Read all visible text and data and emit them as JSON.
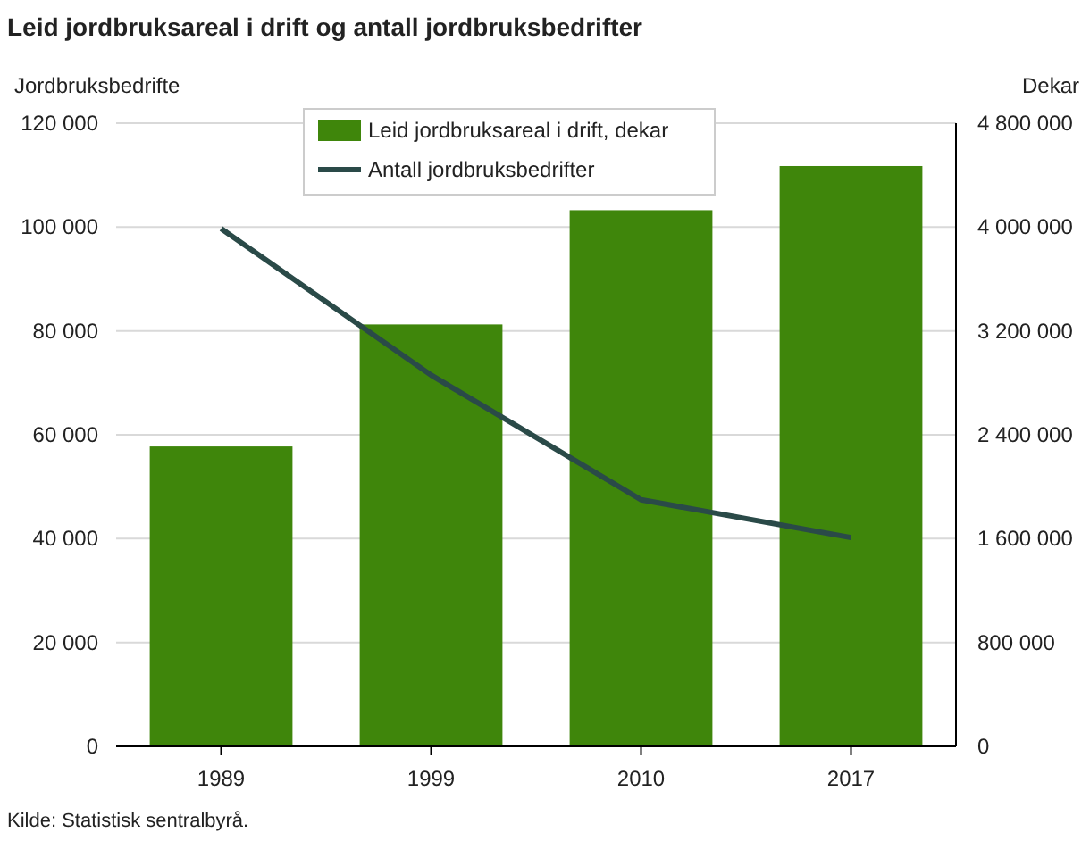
{
  "chart_data": {
    "type": "bar",
    "title": "Leid jordbruksareal i drift og antall jordbruksbedrifter",
    "ylabel": "Jordbruksbedrifte",
    "y2label": "Dekar",
    "categories": [
      "1989",
      "1999",
      "2010",
      "2017"
    ],
    "series": [
      {
        "name": "Leid jordbruksareal i drift, dekar",
        "color": "#3f860b",
        "values": [
          2310000,
          3250000,
          4130000,
          4470000
        ],
        "axis": "y2"
      },
      {
        "name": "Antall jordbruksbedrifter",
        "type": "line",
        "color": "#2a4a48",
        "values": [
          99700,
          71500,
          47500,
          40200
        ],
        "axis": "y"
      }
    ],
    "ylim": [
      0,
      120000
    ],
    "yticks": [
      {
        "value": 0,
        "label": "0"
      },
      {
        "value": 20000,
        "label": "20 000"
      },
      {
        "value": 40000,
        "label": "40 000"
      },
      {
        "value": 60000,
        "label": "60 000"
      },
      {
        "value": 80000,
        "label": "80 000"
      },
      {
        "value": 100000,
        "label": "100 000"
      },
      {
        "value": 120000,
        "label": "120 000"
      }
    ],
    "y2lim": [
      0,
      4800000
    ],
    "y2ticks": [
      {
        "value": 0,
        "label": "0"
      },
      {
        "value": 800000,
        "label": "800 000"
      },
      {
        "value": 1600000,
        "label": "1 600 000"
      },
      {
        "value": 2400000,
        "label": "2 400 000"
      },
      {
        "value": 3200000,
        "label": "3 200 000"
      },
      {
        "value": 4000000,
        "label": "4 000 000"
      },
      {
        "value": 4800000,
        "label": "4 800 000"
      }
    ],
    "grid": "y",
    "legend": "top",
    "marker": "none",
    "line_style": "solid",
    "annotations": [
      "Kilde: Statistisk sentralbyrå."
    ]
  }
}
